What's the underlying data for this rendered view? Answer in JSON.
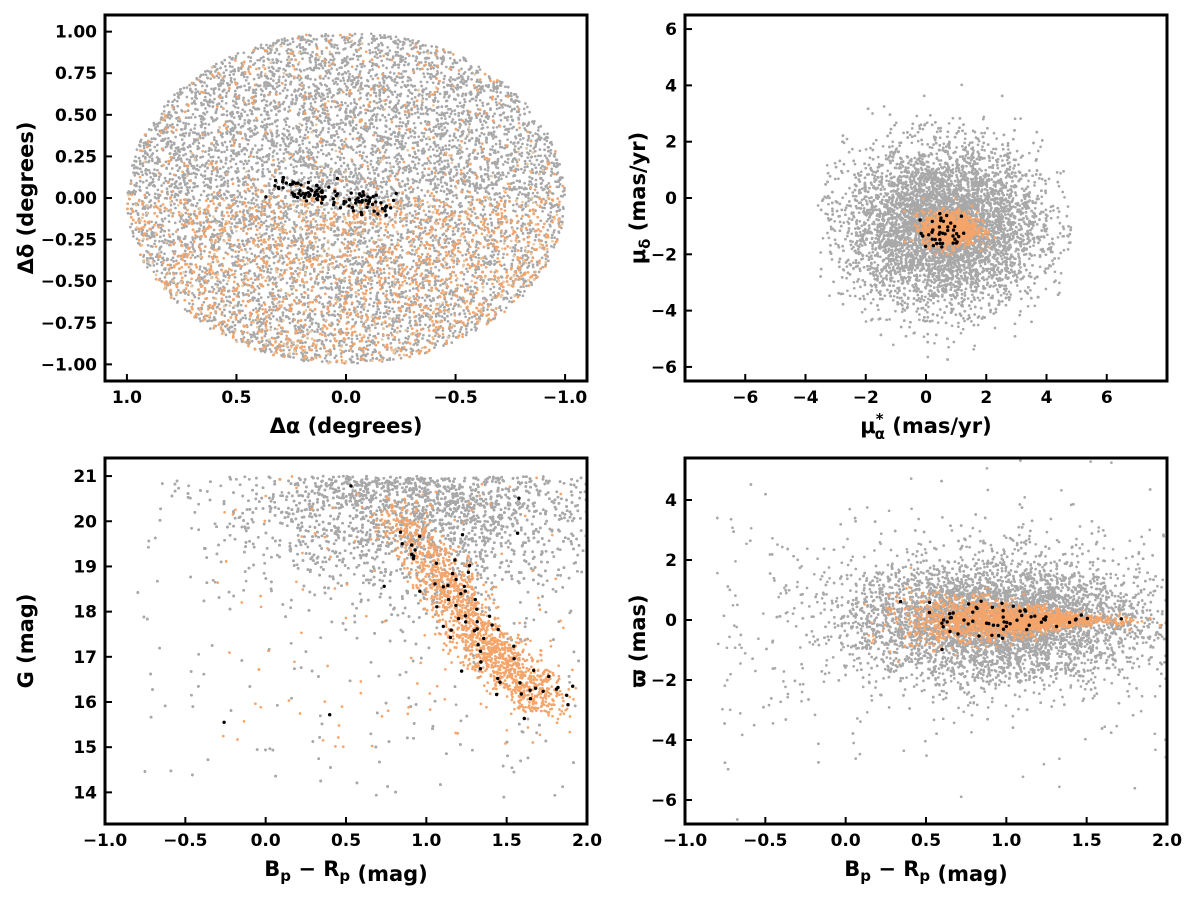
{
  "colors": {
    "field": "#a8a8a8",
    "members": "#f5a46a",
    "core": "#000000",
    "faint_members": "#e8c8a0"
  },
  "chart_data": [
    {
      "type": "scatter",
      "xlabel_main": "Δα",
      "xlabel_unit": "(degrees)",
      "ylabel_main": "Δδ",
      "ylabel_unit": "(degrees)",
      "xlim": [
        1.1,
        -1.1
      ],
      "ylim": [
        -1.1,
        1.1
      ],
      "xticks": [
        1.0,
        0.5,
        0.0,
        -0.5,
        -1.0
      ],
      "xtick_labels": [
        "1.0",
        "0.5",
        "0.0",
        "−0.5",
        "−1.0"
      ],
      "yticks": [
        -1.0,
        -0.75,
        -0.5,
        -0.25,
        0.0,
        0.25,
        0.5,
        0.75,
        1.0
      ],
      "ytick_labels": [
        "−1.00",
        "−0.75",
        "−0.50",
        "−0.25",
        "0.00",
        "0.25",
        "0.50",
        "0.75",
        "1.00"
      ],
      "series": [
        {
          "role": "field",
          "distribution": "disk",
          "center": [
            0,
            0
          ],
          "radius": 1.0,
          "count": 9000
        },
        {
          "role": "members",
          "distribution": "disk-south-weighted",
          "center": [
            0,
            0
          ],
          "radius": 1.0,
          "count": 2200
        },
        {
          "role": "core",
          "distribution": "band",
          "x_range": [
            0.3,
            -0.2
          ],
          "y_center": 0.02,
          "count": 110
        }
      ]
    },
    {
      "type": "scatter",
      "xlabel_main": "μ",
      "xlabel_sub": "α",
      "xlabel_sup": "*",
      "xlabel_unit": "(mas/yr)",
      "ylabel_main": "μ",
      "ylabel_sub": "δ",
      "ylabel_unit": "(mas/yr)",
      "xlim": [
        -8,
        8
      ],
      "ylim": [
        -6.5,
        6.5
      ],
      "xticks": [
        -6,
        -4,
        -2,
        0,
        2,
        4,
        6
      ],
      "xtick_labels": [
        "−6",
        "−4",
        "−2",
        "0",
        "2",
        "4",
        "6"
      ],
      "yticks": [
        -6,
        -4,
        -2,
        0,
        2,
        4,
        6
      ],
      "ytick_labels": [
        "−6",
        "−4",
        "−2",
        "0",
        "2",
        "4",
        "6"
      ],
      "series": [
        {
          "role": "field",
          "distribution": "gaussian-clipped",
          "center": [
            0.6,
            -1.0
          ],
          "sigma": [
            1.6,
            1.4
          ],
          "clip_radius": [
            4.3,
            6.0
          ],
          "count": 7500
        },
        {
          "role": "members",
          "distribution": "gaussian",
          "center": [
            0.8,
            -1.1
          ],
          "sigma": [
            0.45,
            0.3
          ],
          "count": 1000
        },
        {
          "role": "core",
          "distribution": "gaussian",
          "center": [
            0.7,
            -1.2
          ],
          "sigma": [
            0.45,
            0.3
          ],
          "count": 40
        }
      ]
    },
    {
      "type": "scatter",
      "xlabel_main": "B",
      "xlabel_sub": "p",
      "xlabel_mid": " − R",
      "xlabel_sub2": "p",
      "xlabel_unit": "(mag)",
      "ylabel_main": "G",
      "ylabel_unit": "(mag)",
      "xlim": [
        -1.0,
        2.0
      ],
      "ylim": [
        13.3,
        21.4
      ],
      "xticks": [
        -1.0,
        -0.5,
        0.0,
        0.5,
        1.0,
        1.5,
        2.0
      ],
      "xtick_labels": [
        "−1.0",
        "−0.5",
        "0.0",
        "0.5",
        "1.0",
        "1.5",
        "2.0"
      ],
      "yticks": [
        14,
        15,
        16,
        17,
        18,
        19,
        20,
        21
      ],
      "ytick_labels": [
        "14",
        "15",
        "16",
        "17",
        "18",
        "19",
        "20",
        "21"
      ],
      "series": [
        {
          "role": "field",
          "distribution": "cmd-field",
          "count": 7000
        },
        {
          "role": "members",
          "distribution": "cmd-sequence",
          "sequence": [
            [
              0.75,
              20.3
            ],
            [
              1.0,
              19.3
            ],
            [
              1.15,
              18.5
            ],
            [
              1.3,
              17.5
            ],
            [
              1.5,
              16.8
            ],
            [
              1.75,
              16.0
            ]
          ],
          "count": 1800
        },
        {
          "role": "core",
          "distribution": "cmd-sequence",
          "sequence": [
            [
              0.75,
              20.3
            ],
            [
              1.0,
              19.3
            ],
            [
              1.15,
              18.5
            ],
            [
              1.3,
              17.5
            ],
            [
              1.5,
              16.8
            ],
            [
              1.75,
              16.0
            ]
          ],
          "count": 70
        }
      ]
    },
    {
      "type": "scatter",
      "xlabel_main": "B",
      "xlabel_sub": "p",
      "xlabel_mid": " − R",
      "xlabel_sub2": "p",
      "xlabel_unit": "(mag)",
      "ylabel_main": "ϖ",
      "ylabel_unit": "(mas)",
      "xlim": [
        -1.0,
        2.0
      ],
      "ylim": [
        -6.8,
        5.4
      ],
      "xticks": [
        -1.0,
        -0.5,
        0.0,
        0.5,
        1.0,
        1.5,
        2.0
      ],
      "xtick_labels": [
        "−1.0",
        "−0.5",
        "0.0",
        "0.5",
        "1.0",
        "1.5",
        "2.0"
      ],
      "yticks": [
        -6,
        -4,
        -2,
        0,
        2,
        4
      ],
      "ytick_labels": [
        "−6",
        "−4",
        "−2",
        "0",
        "2",
        "4"
      ],
      "series": [
        {
          "role": "field",
          "distribution": "parallax-field",
          "center": [
            0.95,
            0.0
          ],
          "count": 7000
        },
        {
          "role": "members",
          "distribution": "parallax-narrow",
          "center": [
            1.0,
            0.0
          ],
          "count": 1800
        },
        {
          "role": "core",
          "distribution": "parallax-narrow",
          "center": [
            1.0,
            0.0
          ],
          "count": 60
        }
      ]
    }
  ]
}
